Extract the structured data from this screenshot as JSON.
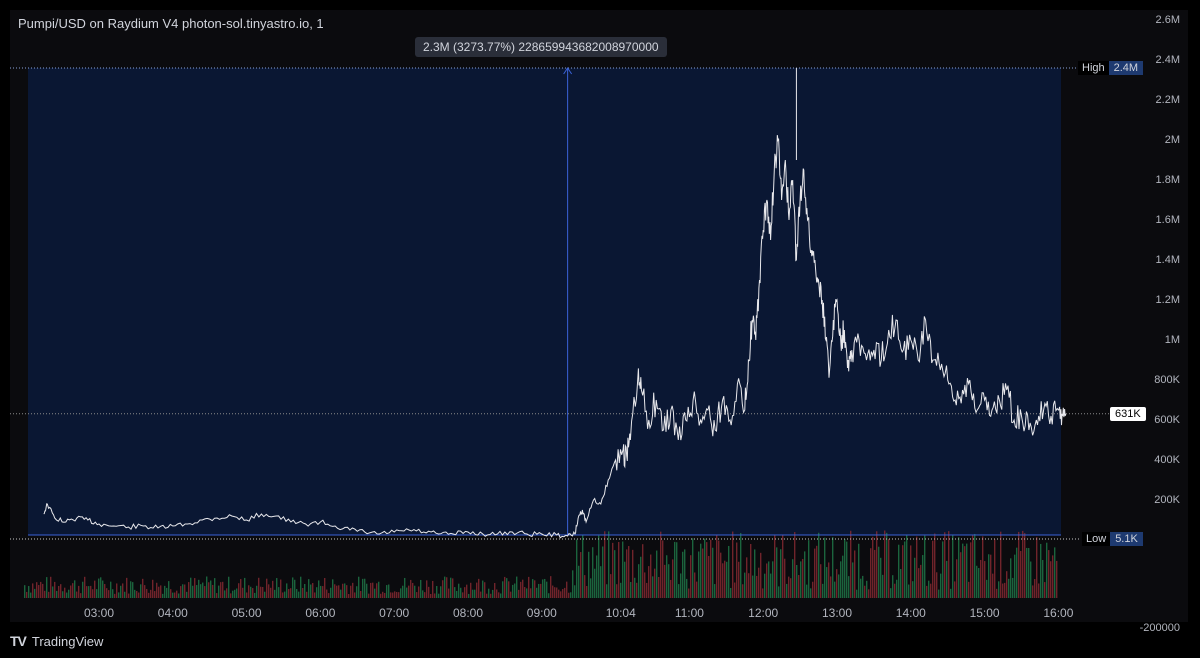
{
  "chart_data": {
    "type": "line",
    "title": "Pumpi/USD on Raydium V4 photon-sol.tinyastro.io, 1",
    "x_ticks": [
      "03:00",
      "04:00",
      "05:00",
      "06:00",
      "07:00",
      "08:00",
      "09:00",
      "10:04",
      "11:00",
      "12:00",
      "13:00",
      "14:00",
      "15:00",
      "16:00"
    ],
    "y_ticks": [
      "2.6M",
      "2.4M",
      "2.2M",
      "2M",
      "1.8M",
      "1.6M",
      "1.4M",
      "1.2M",
      "1M",
      "800K",
      "600K",
      "400K",
      "200K",
      "-200000"
    ],
    "ylim": [
      -270000,
      2600000
    ],
    "xlim_hours": [
      2.2,
      16.2
    ],
    "series": [
      {
        "x_hours": [
          2.25,
          2.3,
          2.4,
          2.55,
          2.7,
          2.85,
          3.0,
          3.2,
          3.4,
          3.6,
          3.8,
          4.0,
          4.2,
          4.4,
          4.6,
          4.8,
          5.0,
          5.2,
          5.4,
          5.6,
          5.8,
          6.0,
          6.2,
          6.4,
          6.6,
          6.8,
          7.0,
          7.2,
          7.4,
          7.6,
          7.8,
          8.0,
          8.2,
          8.4,
          8.6,
          8.8,
          9.0,
          9.2,
          9.35,
          9.45,
          9.5,
          9.55,
          9.6,
          9.7,
          9.8,
          9.9,
          10.0,
          10.1,
          10.15,
          10.2,
          10.3,
          10.35,
          10.45,
          10.55,
          10.65,
          10.75,
          10.85,
          10.95,
          11.05,
          11.15,
          11.25,
          11.35,
          11.45,
          11.55,
          11.65,
          11.75,
          11.8,
          11.85,
          11.9,
          11.95,
          12.0,
          12.05,
          12.1,
          12.15,
          12.2,
          12.25,
          12.3,
          12.35,
          12.4,
          12.45,
          12.5,
          12.55,
          12.6,
          12.65,
          12.7,
          12.75,
          12.8,
          12.85,
          12.9,
          12.95,
          13.0,
          13.05,
          13.1,
          13.15,
          13.2,
          13.3,
          13.4,
          13.5,
          13.6,
          13.7,
          13.8,
          13.9,
          14.0,
          14.1,
          14.2,
          14.3,
          14.4,
          14.5,
          14.6,
          14.7,
          14.8,
          14.9,
          15.0,
          15.1,
          15.2,
          15.3,
          15.4,
          15.5,
          15.6,
          15.7,
          15.8,
          15.9,
          16.0,
          16.05,
          16.1
        ],
        "y": [
          130000,
          180000,
          110000,
          90000,
          110000,
          100000,
          80000,
          70000,
          65000,
          70000,
          60000,
          70000,
          80000,
          100000,
          110000,
          120000,
          100000,
          130000,
          120000,
          90000,
          80000,
          90000,
          70000,
          50000,
          40000,
          30000,
          40000,
          50000,
          40000,
          30000,
          30000,
          40000,
          30000,
          30000,
          40000,
          30000,
          30000,
          25000,
          20000,
          30000,
          120000,
          150000,
          90000,
          200000,
          180000,
          300000,
          400000,
          450000,
          420000,
          500000,
          800000,
          750000,
          600000,
          700000,
          550000,
          650000,
          500000,
          600000,
          700000,
          600000,
          650000,
          550000,
          700000,
          600000,
          780000,
          650000,
          900000,
          1100000,
          1000000,
          1300000,
          1550000,
          1700000,
          1500000,
          1850000,
          2000000,
          1700000,
          1900000,
          1600000,
          1800000,
          1400000,
          1700000,
          1850000,
          1600000,
          1450000,
          1400000,
          1300000,
          1200000,
          1000000,
          850000,
          1100000,
          1200000,
          1000000,
          1050000,
          900000,
          950000,
          1000000,
          900000,
          950000,
          900000,
          1050000,
          1100000,
          950000,
          1000000,
          900000,
          1100000,
          900000,
          850000,
          800000,
          700000,
          750000,
          800000,
          650000,
          700000,
          650000,
          700000,
          750000,
          600000,
          620000,
          550000,
          600000,
          650000,
          620000,
          650000,
          631000,
          631000
        ]
      }
    ],
    "high": {
      "label": "High",
      "value": "2.4M",
      "v": 2360000
    },
    "low": {
      "label": "Low",
      "value": "5.1K",
      "v": 5100
    },
    "last_price": {
      "value": "631K",
      "v": 631000
    },
    "measure": {
      "label": "2.3M (3273.77%) 2286599436820089700​00",
      "x_start_hours": 2.2,
      "x_end_hours": 9.35,
      "x_arrow_hours": 9.35
    },
    "colors": {
      "line": "#e8e8ec",
      "measure_fill": "#0a1733",
      "measure_line": "#3a62d8",
      "volume_up": "#1f7a4a",
      "volume_down": "#8a2a32",
      "high_low_line": "#8aa0d8"
    },
    "grid": false
  },
  "brand": {
    "name": "TradingView",
    "logo": "TV"
  }
}
